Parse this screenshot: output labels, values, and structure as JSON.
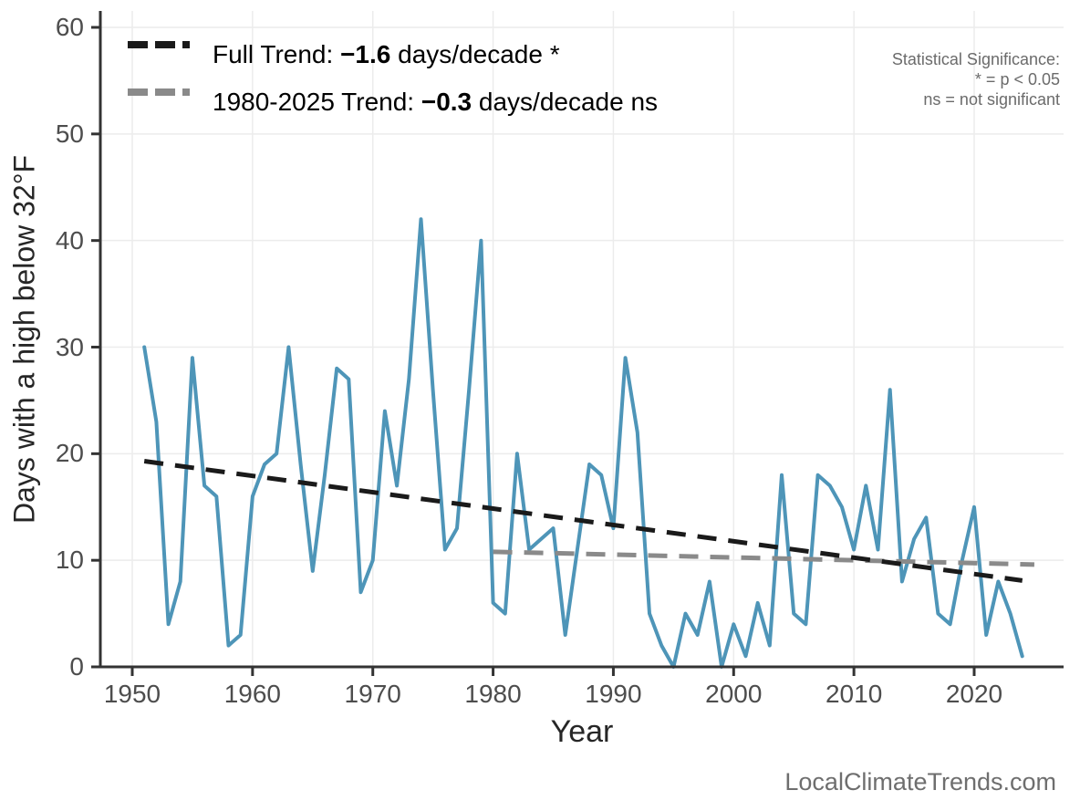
{
  "chart_data": {
    "type": "line",
    "title": "",
    "xlabel": "Year",
    "ylabel": "Days with a high below 32°F",
    "xlim": [
      1947,
      2027
    ],
    "ylim": [
      0,
      60
    ],
    "x_ticks": [
      1950,
      1960,
      1970,
      1980,
      1990,
      2000,
      2010,
      2020
    ],
    "y_ticks": [
      0,
      10,
      20,
      30,
      40,
      50,
      60
    ],
    "grid": true,
    "legend_position": "top-left",
    "series": [
      {
        "name": "days-below-32F-per-year",
        "color": "#4e95b8",
        "x": [
          1951,
          1952,
          1953,
          1954,
          1955,
          1956,
          1957,
          1958,
          1959,
          1960,
          1961,
          1962,
          1963,
          1964,
          1965,
          1966,
          1967,
          1968,
          1969,
          1970,
          1971,
          1972,
          1973,
          1974,
          1975,
          1976,
          1977,
          1978,
          1979,
          1980,
          1981,
          1982,
          1983,
          1984,
          1985,
          1986,
          1987,
          1988,
          1989,
          1990,
          1991,
          1992,
          1993,
          1994,
          1995,
          1996,
          1997,
          1998,
          1999,
          2000,
          2001,
          2002,
          2003,
          2004,
          2005,
          2006,
          2007,
          2008,
          2009,
          2010,
          2011,
          2012,
          2013,
          2014,
          2015,
          2016,
          2017,
          2018,
          2019,
          2020,
          2021,
          2022,
          2023,
          2024
        ],
        "y": [
          30,
          23,
          4,
          8,
          29,
          17,
          16,
          2,
          3,
          16,
          19,
          20,
          30,
          19,
          9,
          18,
          28,
          27,
          7,
          10,
          24,
          17,
          27,
          42,
          26,
          11,
          13,
          26,
          40,
          6,
          5,
          20,
          11,
          12,
          13,
          3,
          11,
          19,
          18,
          13,
          29,
          22,
          5,
          2,
          0,
          5,
          3,
          8,
          0,
          4,
          1,
          6,
          2,
          18,
          5,
          4,
          18,
          17,
          15,
          11,
          17,
          11,
          26,
          8,
          12,
          14,
          5,
          4,
          10,
          15,
          3,
          8,
          5,
          1
        ]
      }
    ],
    "trend_lines": [
      {
        "name": "full-trend",
        "label": "Full Trend: −1.6 days/decade *",
        "slope_days_per_decade": -1.6,
        "significant": true,
        "color": "#1a1a1a",
        "x": [
          1951,
          2024
        ],
        "y": [
          19.3,
          8.1
        ]
      },
      {
        "name": "recent-trend",
        "label": "1980-2025 Trend: −0.3 days/decade ns",
        "slope_days_per_decade": -0.3,
        "significant": false,
        "color": "#8a8a8a",
        "x": [
          1980,
          2025
        ],
        "y": [
          10.8,
          9.6
        ]
      }
    ]
  },
  "legend": {
    "items": [
      {
        "prefix": "Full Trend: ",
        "value": "−1.6",
        "suffix": " days/decade *"
      },
      {
        "prefix": "1980-2025 Trend: ",
        "value": "−0.3",
        "suffix": " days/decade ns"
      }
    ]
  },
  "significance_note": {
    "line1": "Statistical Significance:",
    "line2": "* = p < 0.05",
    "line3": "ns = not significant"
  },
  "watermark": {
    "text": "LocalClimateTrends.com"
  },
  "axis_titles": {
    "x": "Year",
    "y": "Days with a high below 32°F"
  },
  "colors": {
    "series_blue": "#4e95b8",
    "trend_black": "#1a1a1a",
    "trend_gray": "#8a8a8a",
    "axis_line": "#333333",
    "grid_line": "#ececec",
    "tick_label": "#4d4d4d",
    "axis_title": "#262626",
    "muted_text": "#6b6b6b"
  }
}
